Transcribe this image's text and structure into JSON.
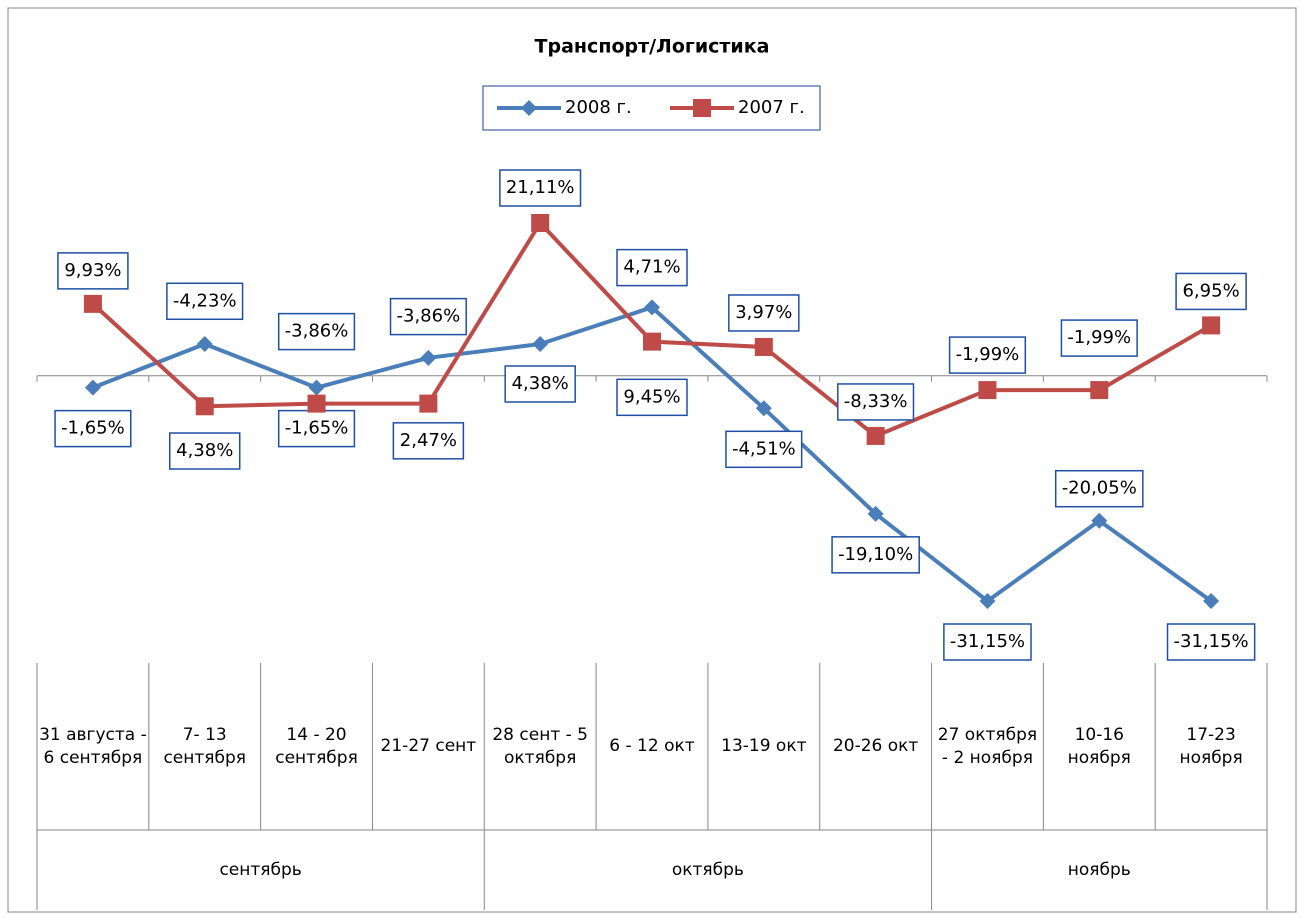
{
  "chart_data": {
    "type": "line",
    "title": "Транспорт/Логистика",
    "categories": [
      "31 августа - 6 сентября",
      "7- 13 сентября",
      "14 - 20 сентября",
      "21-27 сент",
      "28 сент - 5 октября",
      "6 - 12 окт",
      "13-19 окт",
      "20-26 окт",
      "27 октября - 2 ноября",
      "10-16 ноября",
      "17-23 ноября"
    ],
    "groups": [
      {
        "name": "сентябрь",
        "size": 4
      },
      {
        "name": "октябрь",
        "size": 4
      },
      {
        "name": "ноябрь",
        "size": 3
      }
    ],
    "series": [
      {
        "name": "2008 г.",
        "color": "#4a7ebb",
        "marker": "diamond",
        "values": [
          -1.65,
          4.38,
          -1.65,
          2.47,
          4.38,
          9.45,
          -4.51,
          -19.1,
          -31.15,
          -20.05,
          -31.15
        ],
        "value_labels": [
          "-1,65%",
          "4,38%",
          "-1,65%",
          "2,47%",
          "4,38%",
          "9,45%",
          "-4,51%",
          "-19,10%",
          "-31,15%",
          "-20,05%",
          "-31,15%"
        ]
      },
      {
        "name": "2007 г.",
        "color": "#be4b48",
        "marker": "square",
        "values": [
          9.93,
          -4.23,
          -3.86,
          -3.86,
          21.11,
          4.71,
          3.97,
          -8.33,
          -1.99,
          -1.99,
          6.95
        ],
        "value_labels": [
          "9,93%",
          "-4,23%",
          "-3,86%",
          "-3,86%",
          "21,11%",
          "4,71%",
          "3,97%",
          "-8,33%",
          "-1,99%",
          "-1,99%",
          "6,95%"
        ]
      }
    ]
  }
}
